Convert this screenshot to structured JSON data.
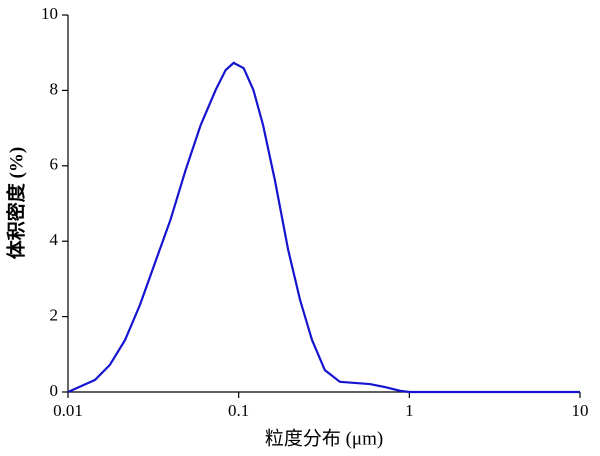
{
  "chart_data": {
    "type": "line",
    "xlabel": "粒度分布 (μm)",
    "ylabel": "体积密度 (%)",
    "xscale": "log",
    "x": [
      0.01,
      0.0144,
      0.0176,
      0.0216,
      0.0264,
      0.0323,
      0.0398,
      0.0489,
      0.0599,
      0.0733,
      0.0839,
      0.0935,
      0.107,
      0.122,
      0.139,
      0.163,
      0.195,
      0.229,
      0.269,
      0.32,
      0.392,
      0.479,
      0.587,
      0.72,
      0.886,
      1,
      2,
      5,
      10
    ],
    "series": [
      {
        "name": "体积密度",
        "color": "#1515d0",
        "values": [
          0,
          0.32,
          0.72,
          1.38,
          2.31,
          3.42,
          4.56,
          5.89,
          7.08,
          8.01,
          8.54,
          8.73,
          8.59,
          8.01,
          7.08,
          5.62,
          3.77,
          2.44,
          1.38,
          0.58,
          0.27,
          0.24,
          0.21,
          0.13,
          0.03,
          0,
          0,
          0,
          0
        ]
      }
    ],
    "xlim": [
      0.01,
      10
    ],
    "xticks": [
      0.01,
      0.1,
      1,
      10
    ],
    "ylim": [
      0,
      10
    ],
    "yticks": [
      0,
      2,
      4,
      6,
      8,
      10
    ]
  }
}
